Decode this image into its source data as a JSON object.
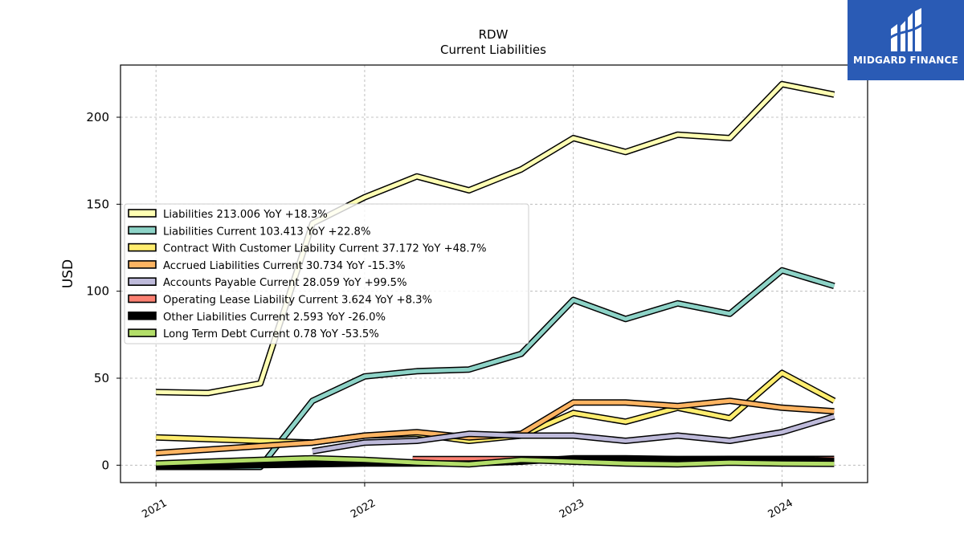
{
  "chart_data": {
    "type": "line",
    "title": "RDW",
    "subtitle": "Current  Liabilities",
    "ylabel": "USD",
    "xlabel": "",
    "ylim": [
      -10,
      230
    ],
    "xlim": [
      2020.83,
      2024.41
    ],
    "y_ticks": [
      0,
      50,
      100,
      150,
      200
    ],
    "x_ticks": [
      {
        "value": 2021,
        "label": "2021"
      },
      {
        "value": 2022,
        "label": "2022"
      },
      {
        "value": 2023,
        "label": "2023"
      },
      {
        "value": 2024,
        "label": "2024"
      }
    ],
    "grid": true,
    "legend_position": "upper-left",
    "series": [
      {
        "name": "Liabilities  213.006 YoY +18.3%",
        "color": "#ffffb3",
        "x": [
          2021.0,
          2021.25,
          2021.5,
          2021.75,
          2022.0,
          2022.25,
          2022.5,
          2022.75,
          2023.0,
          2023.25,
          2023.5,
          2023.75,
          2024.0,
          2024.25
        ],
        "y": [
          42,
          41.5,
          47,
          139,
          154,
          166,
          158,
          170,
          188,
          180,
          190,
          188,
          219,
          213
        ]
      },
      {
        "name": "Liabilities Current  103.413 YoY +22.8%",
        "color": "#8dd3c7",
        "x": [
          2021.0,
          2021.25,
          2021.5,
          2021.75,
          2022.0,
          2022.25,
          2022.5,
          2022.75,
          2023.0,
          2023.25,
          2023.5,
          2023.75,
          2024.0,
          2024.25
        ],
        "y": [
          -1,
          -1,
          -1,
          37,
          51,
          54,
          55,
          64,
          95,
          84,
          93,
          87,
          112,
          103
        ]
      },
      {
        "name": "Contract With Customer Liability Current  37.172 YoY +48.7%",
        "color": "#ffed6f",
        "x": [
          2021.0,
          2021.75,
          2022.0,
          2022.25,
          2022.5,
          2022.75,
          2023.0,
          2023.25,
          2023.5,
          2023.75,
          2024.0,
          2024.25
        ],
        "y": [
          16,
          13,
          17,
          18,
          14,
          17,
          30,
          25,
          33,
          27,
          53,
          37
        ]
      },
      {
        "name": "Accrued Liabilities Current  30.734 YoY -15.3%",
        "color": "#fdb462",
        "x": [
          2021.0,
          2021.75,
          2022.0,
          2022.25,
          2022.5,
          2022.75,
          2023.0,
          2023.25,
          2023.5,
          2023.75,
          2024.0,
          2024.25
        ],
        "y": [
          7,
          13,
          17,
          19,
          16,
          18,
          36,
          36,
          34,
          37,
          33,
          31
        ]
      },
      {
        "name": "Accounts Payable Current  28.059 YoY +99.5%",
        "color": "#bebada",
        "x": [
          2021.75,
          2022.0,
          2022.25,
          2022.5,
          2022.75,
          2023.0,
          2023.25,
          2023.5,
          2023.75,
          2024.0,
          2024.25
        ],
        "y": [
          8,
          13,
          14,
          18,
          17,
          17,
          14,
          17,
          14,
          19,
          28
        ]
      },
      {
        "name": "Operating Lease Liability Current  3.624 YoY +8.3%",
        "color": "#fb8072",
        "x": [
          2022.23,
          2022.5,
          2022.75,
          2023.0,
          2023.25,
          2023.5,
          2023.75,
          2024.0,
          2024.25
        ],
        "y": [
          3.5,
          3.5,
          3.5,
          3.4,
          3.4,
          3.5,
          3.6,
          3.6,
          3.6
        ]
      },
      {
        "name": "Other Liabilities Current  2.593 YoY -26.0%",
        "color": "#000000",
        "x": [
          2021.0,
          2021.5,
          2022.0,
          2022.5,
          2022.75,
          2023.0,
          2023.25,
          2023.5,
          2023.75,
          2024.0,
          2024.25
        ],
        "y": [
          -1,
          0,
          1,
          1,
          2,
          4,
          4,
          3.5,
          3.5,
          3.5,
          2.6
        ]
      },
      {
        "name": "Long Term Debt Current  0.78 YoY -53.5%",
        "color": "#b3de69",
        "x": [
          2021.0,
          2021.5,
          2021.75,
          2022.0,
          2022.25,
          2022.5,
          2022.75,
          2023.0,
          2023.25,
          2023.5,
          2023.75,
          2024.0,
          2024.25
        ],
        "y": [
          1,
          3,
          4,
          3,
          1.5,
          0.5,
          3,
          2,
          1,
          0.5,
          1.5,
          1,
          0.8
        ]
      }
    ]
  },
  "logo": {
    "text": "MIDGARD FINANCE",
    "color": "#2a5bb5"
  }
}
